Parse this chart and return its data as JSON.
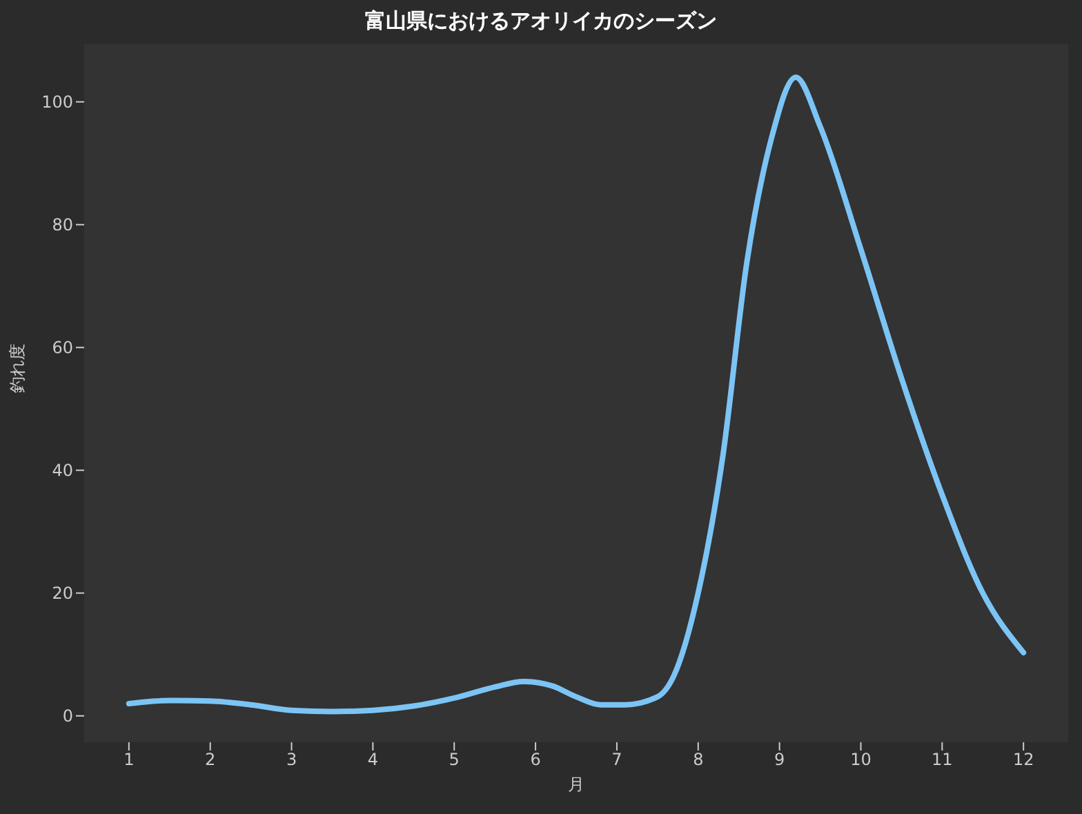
{
  "chart_data": {
    "type": "line",
    "title": "富山県におけるアオリイカのシーズン",
    "xlabel": "月",
    "ylabel": "釣れ度",
    "x": [
      1,
      1.5,
      2,
      2.5,
      3,
      3.5,
      4,
      4.5,
      5,
      5.5,
      5.85,
      6.2,
      6.5,
      6.8,
      7.1,
      7.5,
      7.7,
      8,
      8.3,
      8.6,
      8.9,
      9.2,
      9.5,
      10,
      10.5,
      11,
      11.5,
      12
    ],
    "series": [
      {
        "color": "#7cc4f5",
        "values": [
          2,
          2.5,
          2.4,
          1.8,
          0.9,
          0.7,
          0.9,
          1.6,
          2.9,
          4.7,
          5.6,
          4.9,
          3.1,
          1.8,
          1.8,
          3.1,
          6.5,
          20,
          42,
          74,
          94,
          104,
          96,
          76,
          55,
          36,
          20,
          10.3
        ]
      }
    ],
    "xlim": [
      0.45,
      12.55
    ],
    "xticks": [
      1,
      2,
      3,
      4,
      5,
      6,
      7,
      8,
      9,
      10,
      11,
      12
    ],
    "ylim": [
      -4.3,
      109.4
    ],
    "yticks": [
      0,
      20,
      40,
      60,
      80,
      100
    ],
    "grid": false,
    "legend": false,
    "marker": "none",
    "line_style": "solid"
  }
}
